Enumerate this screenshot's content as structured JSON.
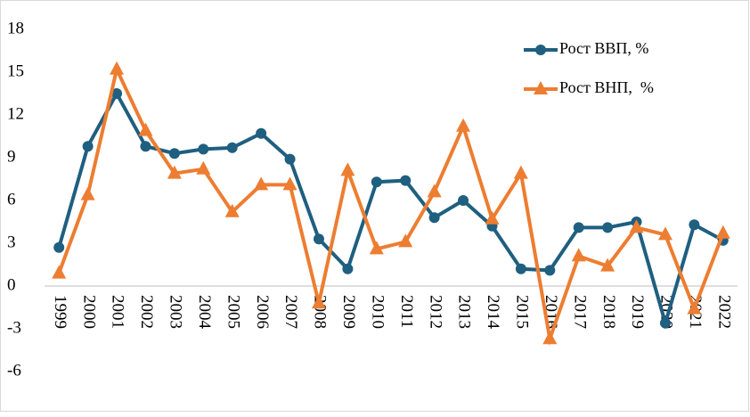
{
  "chart_data": {
    "type": "line",
    "categories": [
      "1999",
      "2000",
      "2001",
      "2002",
      "2003",
      "2004",
      "2005",
      "2006",
      "2007",
      "2008",
      "2009",
      "2010",
      "2011",
      "2012",
      "2013",
      "2014",
      "2015",
      "2016",
      "2017",
      "2018",
      "2019",
      "2020",
      "2021",
      "2022"
    ],
    "series": [
      {
        "name": "Рост ВВП, %",
        "color": "#1f5f80",
        "marker": "circle",
        "values": [
          2.7,
          9.8,
          13.5,
          9.8,
          9.3,
          9.6,
          9.7,
          10.7,
          8.9,
          3.3,
          1.2,
          7.3,
          7.4,
          4.8,
          6.0,
          4.2,
          1.2,
          1.1,
          4.1,
          4.1,
          4.5,
          -2.6,
          4.3,
          3.2
        ]
      },
      {
        "name": "Рост ВНП,  %",
        "color": "#ed7d31",
        "marker": "triangle",
        "values": [
          0.9,
          6.4,
          15.2,
          10.9,
          7.9,
          8.2,
          5.2,
          7.1,
          7.1,
          -1.2,
          8.1,
          2.6,
          3.1,
          6.6,
          11.2,
          4.7,
          7.9,
          -3.7,
          2.1,
          1.4,
          4.1,
          3.6,
          -1.6,
          3.7
        ]
      }
    ],
    "ylim": [
      -6,
      18
    ],
    "yticks": [
      -6,
      -3,
      0,
      3,
      6,
      9,
      12,
      15,
      18
    ],
    "legend": "upper right"
  }
}
